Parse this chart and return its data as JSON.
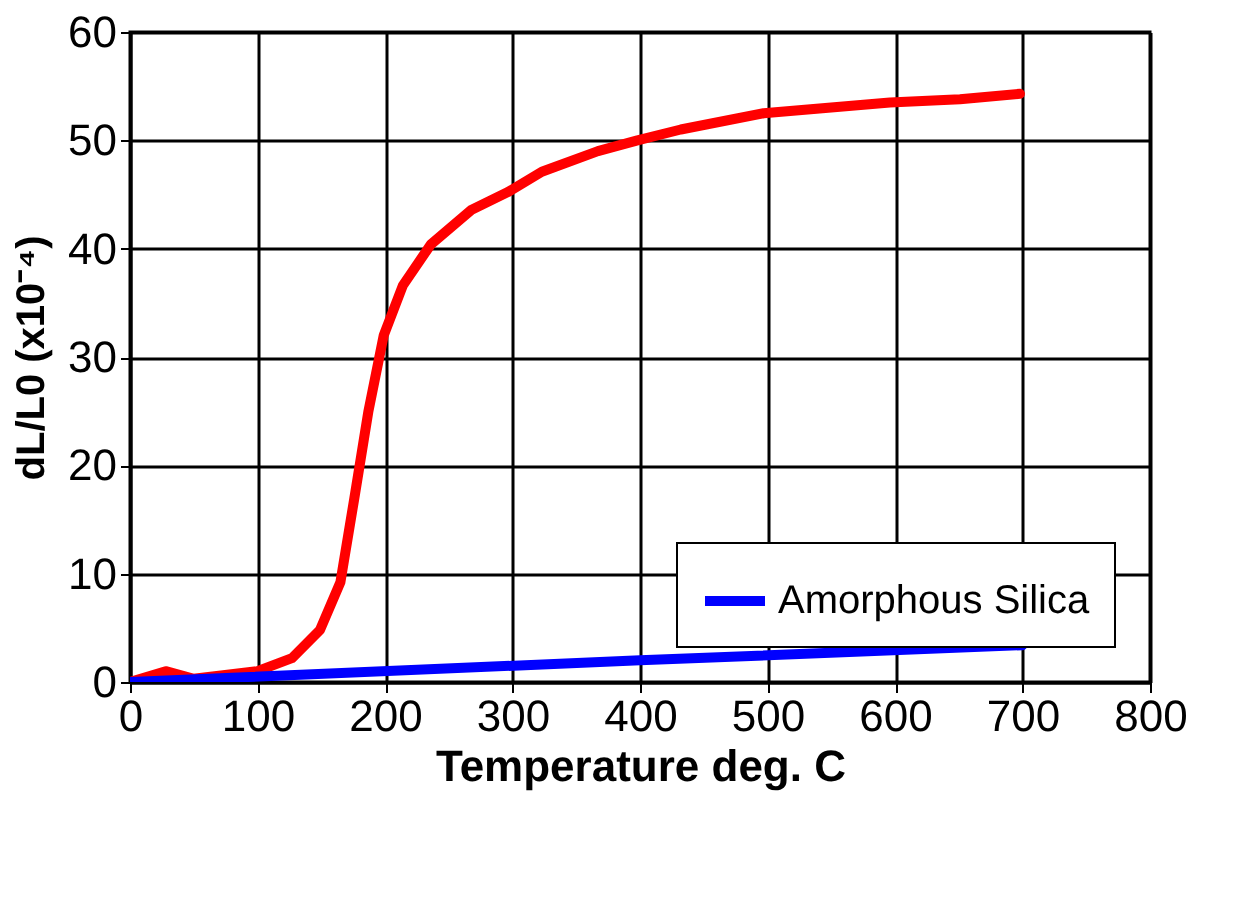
{
  "chart_data": {
    "type": "line",
    "xlabel": "Temperature deg. C",
    "ylabel": "dL/L0 (x10⁻⁴)",
    "xlim": [
      0,
      800
    ],
    "xticks": [
      0,
      100,
      200,
      300,
      400,
      500,
      600,
      700,
      800
    ],
    "ylim": [
      0,
      60
    ],
    "yticks": [
      0,
      10,
      20,
      30,
      40,
      50,
      60
    ],
    "grid": true,
    "legend": "bottom right",
    "marker": "none",
    "line_style": "solid",
    "series": [
      {
        "color": "#ff0000",
        "x": [
          0,
          28,
          50,
          100,
          127,
          149,
          165,
          176,
          187,
          199,
          214,
          236,
          268,
          296,
          323,
          367,
          398,
          432,
          497,
          596,
          651,
          698
        ],
        "values": [
          0,
          1.0,
          0.3,
          1.0,
          2.2,
          4.8,
          9.2,
          17,
          25,
          32,
          36.6,
          40.4,
          43.6,
          45.2,
          47.1,
          49.0,
          50,
          51,
          52.5,
          53.5,
          53.8,
          54.3
        ]
      },
      {
        "name": "Amorphous Silica",
        "color": "#0000ff",
        "x": [
          0,
          400,
          700
        ],
        "values": [
          0,
          2.0,
          3.4
        ]
      }
    ]
  }
}
